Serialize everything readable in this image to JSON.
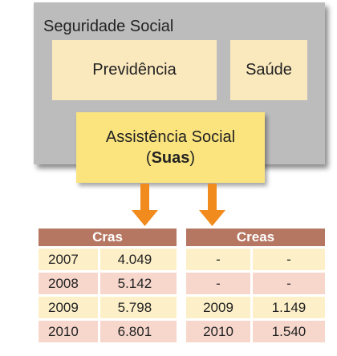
{
  "diagram": {
    "title": "Seguridade Social",
    "boxes": {
      "previdencia": "Previdência",
      "saude": "Saúde",
      "assistencia": "Assistência Social",
      "assistencia_sub": [
        "(",
        "Suas",
        ")"
      ]
    },
    "tables": [
      {
        "header": "Cras",
        "rows": [
          [
            "2007",
            "4.049"
          ],
          [
            "2008",
            "5.142"
          ],
          [
            "2009",
            "5.798"
          ],
          [
            "2010",
            "6.801"
          ]
        ]
      },
      {
        "header": "Creas",
        "rows": [
          [
            "-",
            "-"
          ],
          [
            "-",
            "-"
          ],
          [
            "2009",
            "1.149"
          ],
          [
            "2010",
            "1.540"
          ]
        ]
      }
    ]
  }
}
